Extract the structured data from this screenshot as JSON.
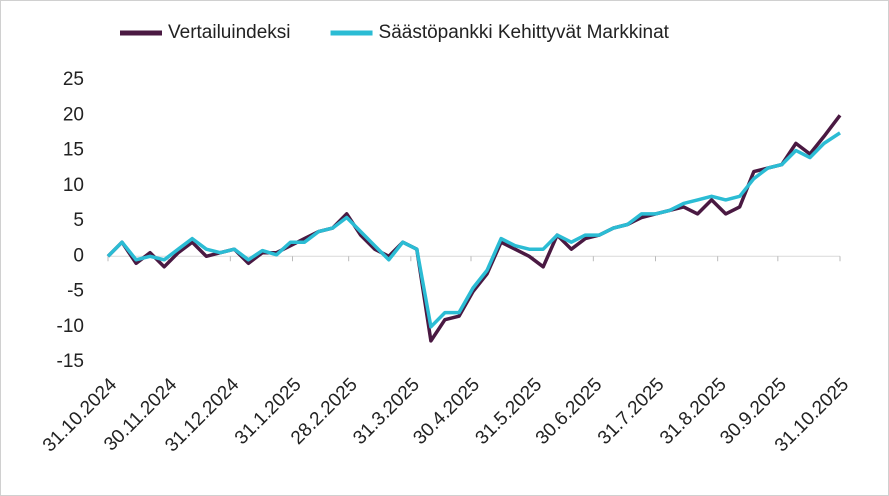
{
  "chart_data": {
    "type": "line",
    "x": [
      "31.10.2024",
      "7.11.2024",
      "14.11.2024",
      "21.11.2024",
      "28.11.2024",
      "5.12.2024",
      "12.12.2024",
      "19.12.2024",
      "26.12.2024",
      "2.1.2025",
      "9.1.2025",
      "16.1.2025",
      "23.1.2025",
      "30.1.2025",
      "6.2.2025",
      "13.2.2025",
      "20.2.2025",
      "27.2.2025",
      "6.3.2025",
      "13.3.2025",
      "20.3.2025",
      "27.3.2025",
      "3.4.2025",
      "10.4.2025",
      "17.4.2025",
      "24.4.2025",
      "1.5.2025",
      "8.5.2025",
      "15.5.2025",
      "22.5.2025",
      "29.5.2025",
      "5.6.2025",
      "12.6.2025",
      "19.6.2025",
      "26.6.2025",
      "3.7.2025",
      "10.7.2025",
      "17.7.2025",
      "24.7.2025",
      "31.7.2025",
      "7.8.2025",
      "14.8.2025",
      "21.8.2025",
      "28.8.2025",
      "4.9.2025",
      "11.9.2025",
      "18.9.2025",
      "25.9.2025",
      "2.10.2025",
      "9.10.2025",
      "16.10.2025",
      "23.10.2025",
      "31.10.2025"
    ],
    "series": [
      {
        "name": "Vertailuindeksi",
        "color": "#4a1942",
        "values": [
          0,
          2,
          -1,
          0.5,
          -1.5,
          0.5,
          2,
          0,
          0.5,
          1,
          -1,
          0.5,
          0.5,
          1.5,
          2.5,
          3.5,
          4,
          6,
          3,
          1,
          0,
          2,
          1,
          -12,
          -9,
          -8.5,
          -5,
          -2.5,
          2,
          1,
          0,
          -1.5,
          3,
          1,
          2.5,
          3,
          4,
          4.5,
          5.5,
          6,
          6.5,
          7,
          6,
          8,
          6,
          7,
          12,
          12.5,
          13,
          16,
          14.5,
          17,
          20
        ]
      },
      {
        "name": "Säästöpankki Kehittyvät Markkinat",
        "color": "#2bbcd4",
        "values": [
          0,
          2,
          -0.5,
          0,
          -0.5,
          1,
          2.5,
          1,
          0.5,
          1,
          -0.5,
          0.8,
          0.2,
          2,
          2,
          3.5,
          4,
          5.5,
          3.5,
          1.5,
          -0.5,
          2,
          1,
          -10,
          -8,
          -8,
          -4.5,
          -2,
          2.5,
          1.5,
          1,
          1,
          3,
          2,
          3,
          3,
          4,
          4.5,
          6,
          6,
          6.5,
          7.5,
          8,
          8.5,
          8,
          8.5,
          11,
          12.5,
          13,
          15,
          14,
          16,
          17.5
        ]
      }
    ],
    "xticks": [
      "31.10.2024",
      "30.11.2024",
      "31.12.2024",
      "31.1.2025",
      "28.2.2025",
      "31.3.2025",
      "30.4.2025",
      "31.5.2025",
      "30.6.2025",
      "31.7.2025",
      "31.8.2025",
      "30.9.2025",
      "31.10.2025"
    ],
    "ylim": [
      -15,
      25
    ],
    "yticks": [
      -15,
      -10,
      -5,
      0,
      5,
      10,
      15,
      20,
      25
    ],
    "grid": false
  }
}
